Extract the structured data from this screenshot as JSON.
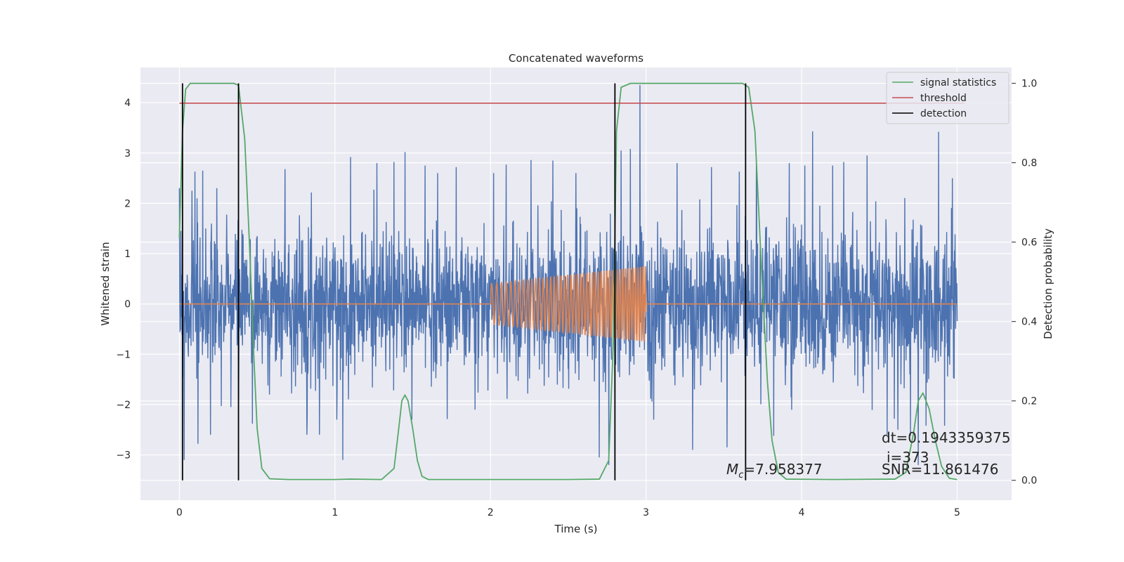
{
  "chart_data": {
    "type": "line",
    "title": "Concatenated waveforms",
    "xlabel": "Time (s)",
    "ylabel": "Whitened strain",
    "ylabel_right": "Detection probability",
    "xlim": [
      -0.25,
      5.35
    ],
    "ylim": [
      -3.9,
      4.7
    ],
    "ylim_right": [
      -0.05,
      1.04
    ],
    "xticks": [
      0,
      1,
      2,
      3,
      4,
      5
    ],
    "yticks": [
      -3,
      -2,
      -1,
      0,
      1,
      2,
      3,
      4
    ],
    "yticks_right": [
      0.0,
      0.2,
      0.4,
      0.6,
      0.8,
      1.0
    ],
    "xtick_labels": [
      "0",
      "1",
      "2",
      "3",
      "4",
      "5"
    ],
    "ytick_labels": [
      "−3",
      "−2",
      "−1",
      "0",
      "1",
      "2",
      "3",
      "4"
    ],
    "ytick_right_labels": [
      "0.0",
      "0.2",
      "0.4",
      "0.6",
      "0.8",
      "1.0"
    ],
    "grid": true,
    "legend_position": "top-right",
    "colors": {
      "background": "#eaeaf2",
      "grid": "#ffffff",
      "strain": "#4c72b0",
      "template": "#dd8452",
      "signal_statistics": "#55a868",
      "threshold": "#c44e52",
      "detection": "#000000"
    },
    "series": [
      {
        "name": "signal statistics",
        "axis": "right",
        "color": "#55a868",
        "x": [
          0.0,
          0.02,
          0.04,
          0.07,
          0.12,
          0.2,
          0.3,
          0.35,
          0.38,
          0.42,
          0.45,
          0.48,
          0.5,
          0.53,
          0.58,
          0.7,
          1.0,
          1.1,
          1.3,
          1.38,
          1.41,
          1.43,
          1.45,
          1.47,
          1.5,
          1.53,
          1.56,
          1.6,
          1.7,
          2.0,
          2.5,
          2.7,
          2.76,
          2.79,
          2.81,
          2.84,
          2.9,
          3.0,
          3.5,
          3.62,
          3.66,
          3.7,
          3.74,
          3.78,
          3.81,
          3.85,
          3.9,
          4.2,
          4.6,
          4.67,
          4.72,
          4.75,
          4.78,
          4.82,
          4.86,
          4.9,
          4.95,
          5.0
        ],
        "y": [
          0.61,
          0.88,
          0.985,
          1.0,
          1.0,
          1.0,
          1.0,
          1.0,
          0.995,
          0.86,
          0.6,
          0.3,
          0.13,
          0.03,
          0.004,
          0.002,
          0.002,
          0.003,
          0.002,
          0.03,
          0.13,
          0.2,
          0.215,
          0.2,
          0.13,
          0.05,
          0.01,
          0.002,
          0.002,
          0.002,
          0.002,
          0.003,
          0.05,
          0.35,
          0.88,
          0.99,
          1.0,
          1.0,
          1.0,
          1.0,
          0.99,
          0.88,
          0.55,
          0.25,
          0.1,
          0.02,
          0.003,
          0.002,
          0.003,
          0.02,
          0.12,
          0.2,
          0.22,
          0.18,
          0.1,
          0.035,
          0.005,
          0.002
        ]
      },
      {
        "name": "threshold",
        "axis": "right",
        "color": "#c44e52",
        "x": [
          0,
          5.05
        ],
        "y": [
          0.95,
          0.95
        ]
      },
      {
        "name": "detection",
        "axis": "right",
        "color": "#000000",
        "x": [
          0.02,
          0.38,
          2.8,
          3.64
        ],
        "y_range": [
          0.0,
          1.0
        ]
      }
    ],
    "strain": {
      "axis": "left",
      "color": "#4c72b0",
      "x_range": [
        0,
        5
      ],
      "spikes": [
        [
          0.01,
          1.45
        ],
        [
          0.03,
          -3.1
        ],
        [
          0.08,
          2.25
        ],
        [
          0.1,
          2.63
        ],
        [
          0.12,
          -2.78
        ],
        [
          0.15,
          2.65
        ],
        [
          0.17,
          1.5
        ],
        [
          0.2,
          -2.6
        ],
        [
          0.27,
          -2.03
        ],
        [
          0.33,
          -2.05
        ],
        [
          0.38,
          -1.9
        ],
        [
          0.47,
          -2.38
        ],
        [
          0.5,
          1.35
        ],
        [
          0.58,
          -1.8
        ],
        [
          0.68,
          2.68
        ],
        [
          0.82,
          -2.6
        ],
        [
          0.9,
          -2.6
        ],
        [
          1.05,
          -3.1
        ],
        [
          1.1,
          2.92
        ],
        [
          1.27,
          2.8
        ],
        [
          1.38,
          2.82
        ],
        [
          1.45,
          3.02
        ],
        [
          1.58,
          2.75
        ],
        [
          1.66,
          2.6
        ],
        [
          1.78,
          2.72
        ],
        [
          1.9,
          -2.1
        ],
        [
          2.02,
          2.6
        ],
        [
          2.1,
          2.77
        ],
        [
          2.26,
          2.86
        ],
        [
          2.4,
          2.85
        ],
        [
          2.55,
          2.6
        ],
        [
          2.7,
          -3.05
        ],
        [
          2.76,
          -3.2
        ],
        [
          2.84,
          3.05
        ],
        [
          2.9,
          3.08
        ],
        [
          2.96,
          4.35
        ],
        [
          3.05,
          -2.3
        ],
        [
          3.2,
          2.8
        ],
        [
          3.3,
          -2.9
        ],
        [
          3.42,
          2.72
        ],
        [
          3.52,
          -2.85
        ],
        [
          3.6,
          2.63
        ],
        [
          3.71,
          2.8
        ],
        [
          3.82,
          -2.62
        ],
        [
          3.92,
          2.8
        ],
        [
          4.02,
          2.75
        ],
        [
          4.07,
          3.43
        ],
        [
          4.2,
          2.75
        ],
        [
          4.27,
          2.82
        ],
        [
          4.42,
          2.95
        ],
        [
          4.55,
          -2.6
        ],
        [
          4.62,
          -2.5
        ],
        [
          4.7,
          -2.62
        ],
        [
          4.75,
          -3.2
        ],
        [
          4.8,
          -2.42
        ],
        [
          4.88,
          3.42
        ],
        [
          4.92,
          -2.42
        ],
        [
          4.97,
          2.5
        ]
      ]
    },
    "template": {
      "axis": "left",
      "color": "#dd8452",
      "x_range": [
        0,
        5
      ],
      "chirp_start": 2.0,
      "chirp_end": 3.0,
      "amplitude_start": 0.4,
      "amplitude_end": 0.75
    },
    "legend": [
      "signal statistics",
      "threshold",
      "detection"
    ],
    "annotations": {
      "dt": "dt=0.1943359375",
      "i": "i=373",
      "mc_symbol": "M",
      "mc_subscript": "c",
      "mc_value": "=7.958377",
      "snr": "SNR=11.861476"
    }
  }
}
